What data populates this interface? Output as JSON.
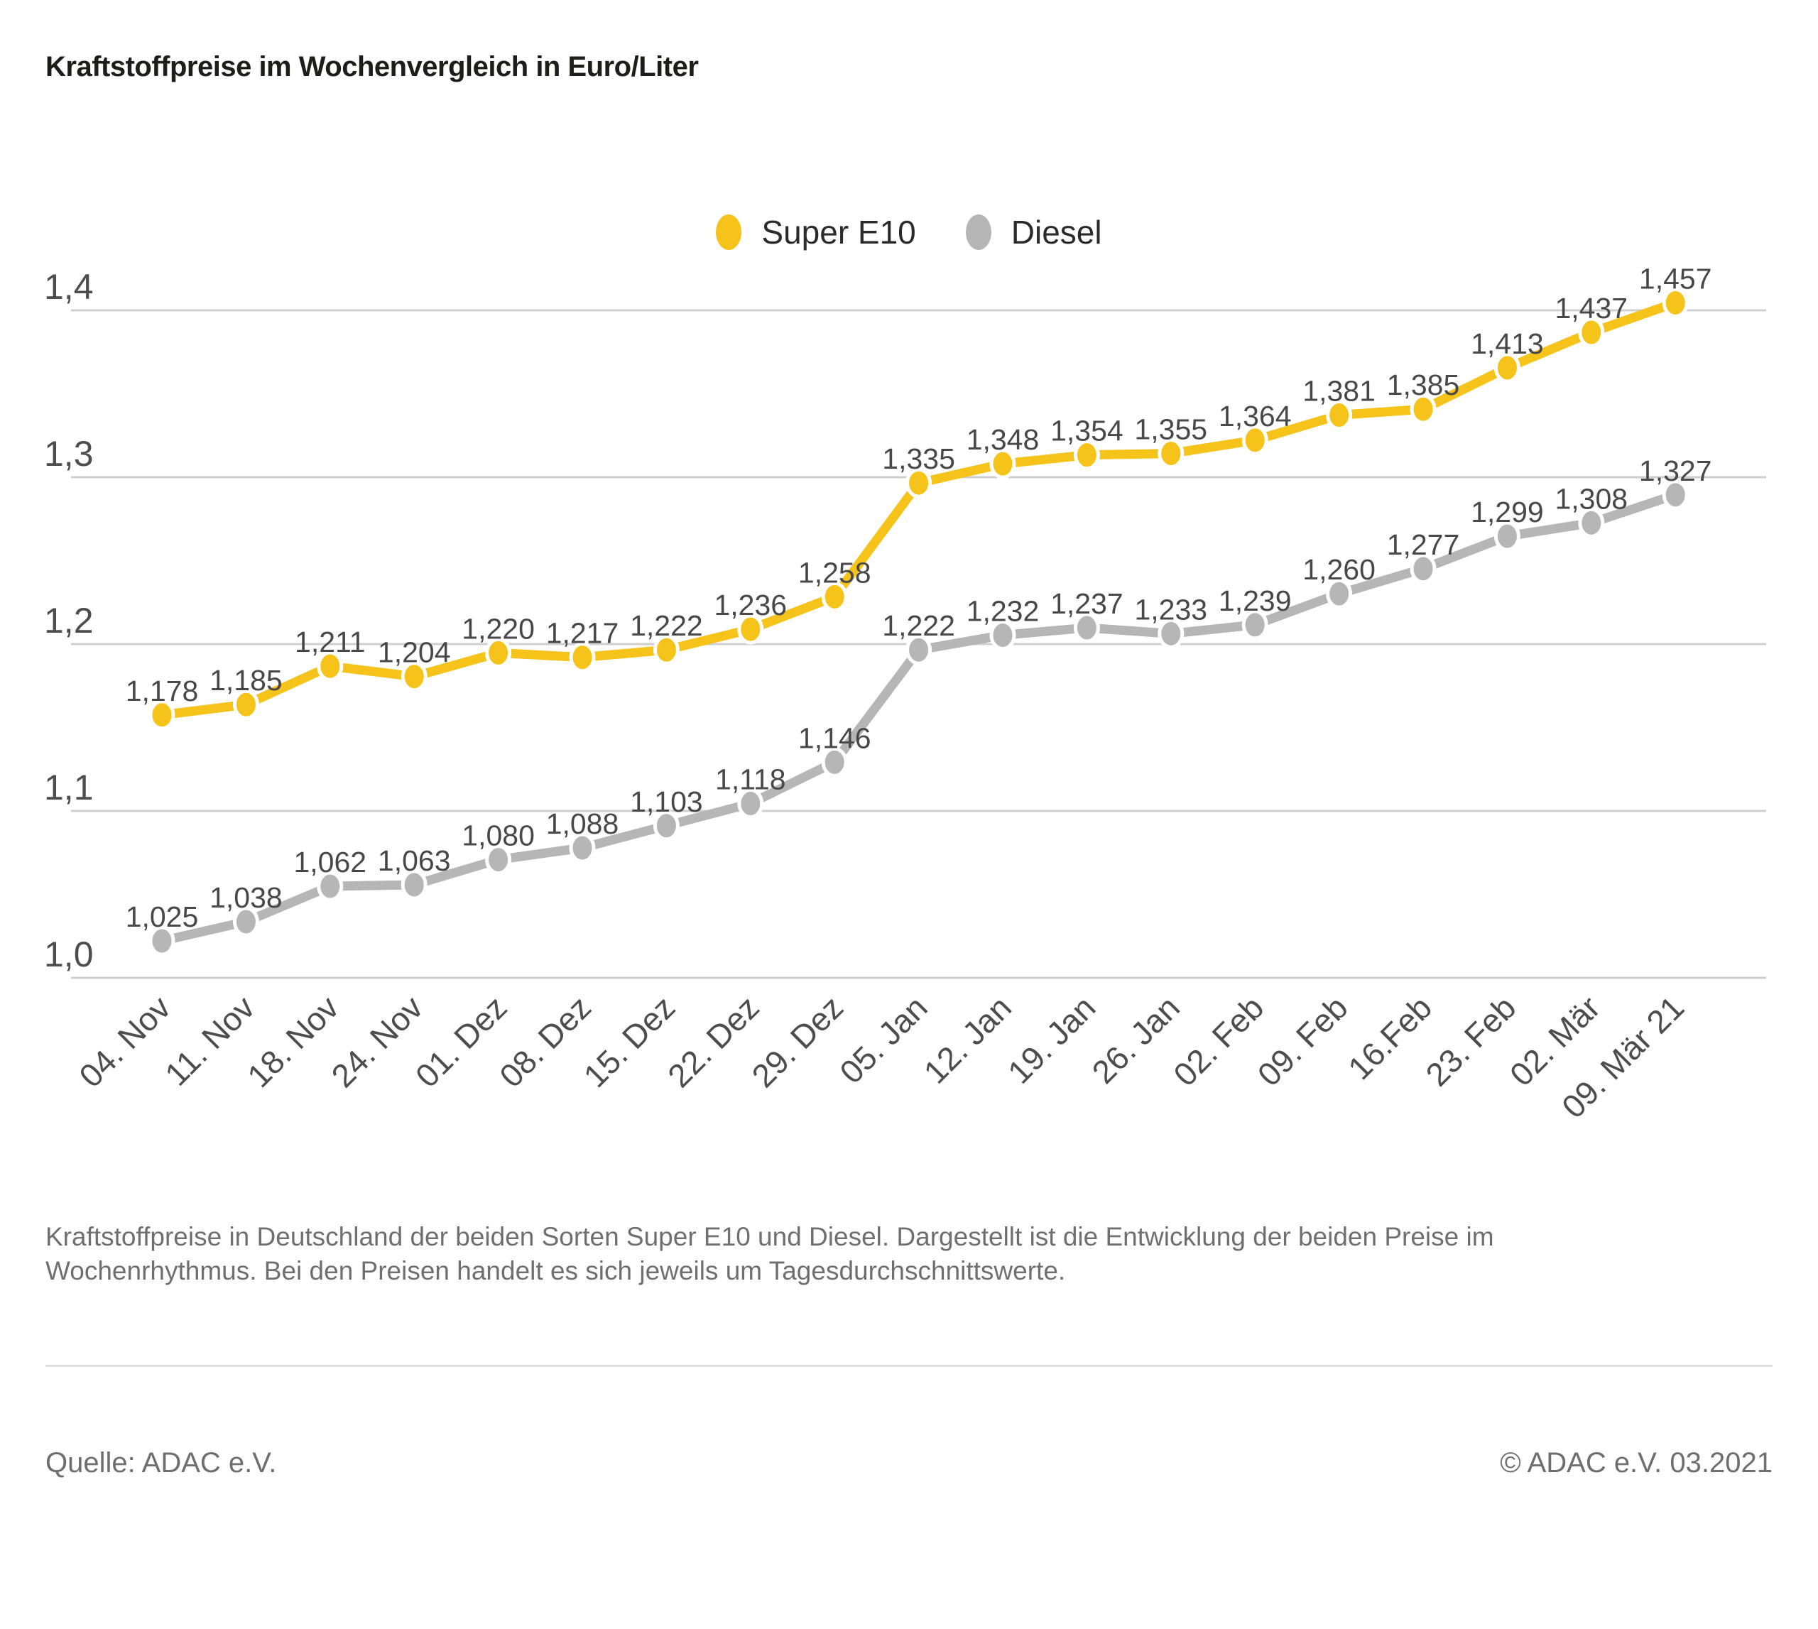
{
  "title": "Kraftstoffpreise im Wochenvergleich in Euro/Liter",
  "chart_data": {
    "type": "line",
    "title": "Kraftstoffpreise im Wochenvergleich in Euro/Liter",
    "categories": [
      "04. Nov",
      "11. Nov",
      "18. Nov",
      "24. Nov",
      "01. Dez",
      "08. Dez",
      "15. Dez",
      "22. Dez",
      "29. Dez",
      "05. Jan",
      "12. Jan",
      "19. Jan",
      "26. Jan",
      "02. Feb",
      "09. Feb",
      "16.Feb",
      "23. Feb",
      "02. Mär",
      "09. Mär 21"
    ],
    "series": [
      {
        "name": "Super E10",
        "color": "#F5C319",
        "values": [
          1.178,
          1.185,
          1.211,
          1.204,
          1.22,
          1.217,
          1.222,
          1.236,
          1.258,
          1.335,
          1.348,
          1.354,
          1.355,
          1.364,
          1.381,
          1.385,
          1.413,
          1.437,
          1.457
        ]
      },
      {
        "name": "Diesel",
        "color": "#B6B6B6",
        "values": [
          1.025,
          1.038,
          1.062,
          1.063,
          1.08,
          1.088,
          1.103,
          1.118,
          1.146,
          1.222,
          1.232,
          1.237,
          1.233,
          1.239,
          1.26,
          1.277,
          1.299,
          1.308,
          1.327
        ]
      }
    ],
    "xlabel": "",
    "ylabel": "",
    "ytick_labels": [
      "1,4",
      "1,3",
      "1,2",
      "1,1",
      "1,0"
    ],
    "ytick_values": [
      1.4,
      1.3,
      1.2,
      1.1,
      1.0
    ],
    "ylim": [
      1.0,
      1.4
    ],
    "grid": true,
    "legend_position": "top-center",
    "decimal_separator": ",",
    "value_labels_shown": true
  },
  "caption": "Kraftstoffpreise in Deutschland der beiden Sorten Super E10 und Diesel. Dargestellt ist die Entwicklung der beiden Preise im Wochenrhythmus. Bei den Preisen handelt es sich jeweils um Tagesdurchschnittswerte.",
  "footer": {
    "source": "Quelle: ADAC e.V.",
    "copyright": "© ADAC e.V. 03.2021"
  },
  "colors": {
    "super_e10": "#F5C319",
    "diesel": "#B6B6B6",
    "gridline": "#cfcfcf",
    "value_label_text": "#484848",
    "tick_label_text": "#4d4d4d"
  }
}
